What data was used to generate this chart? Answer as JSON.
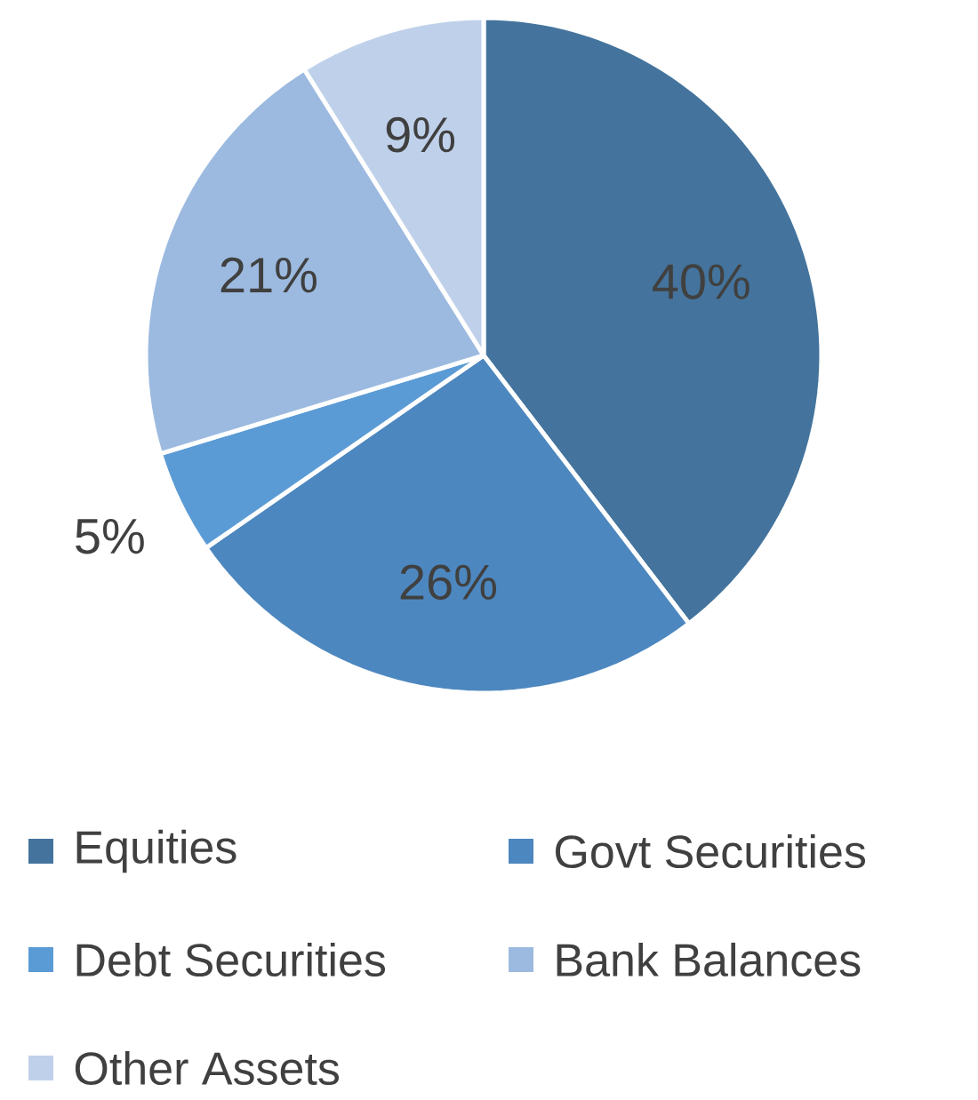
{
  "chart_data": {
    "type": "pie",
    "categories": [
      "Equities",
      "Govt Securities",
      "Debt Securities",
      "Bank Balances",
      "Other Assets"
    ],
    "values": [
      40,
      26,
      5,
      21,
      9
    ],
    "value_labels": [
      "40%",
      "26%",
      "5%",
      "21%",
      "9%"
    ],
    "colors": [
      "#44749d",
      "#4d87bf",
      "#5b9bd5",
      "#9cbae0",
      "#bfd1ea"
    ],
    "legend": "bottom"
  }
}
